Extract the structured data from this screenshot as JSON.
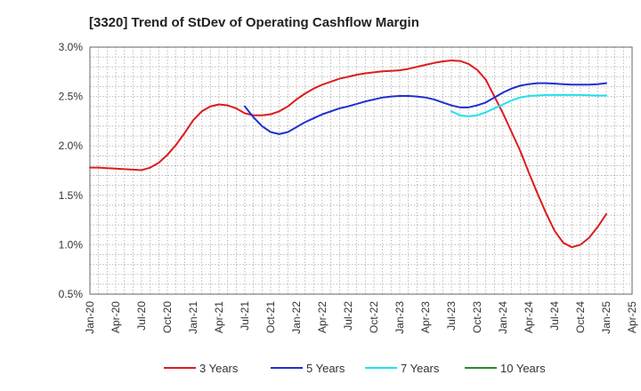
{
  "chart_data": {
    "type": "line",
    "title": "[3320]  Trend of StDev of Operating Cashflow Margin",
    "xlabel": "",
    "ylabel": "",
    "x": [
      "Jan-20",
      "Apr-20",
      "Jul-20",
      "Oct-20",
      "Jan-21",
      "Apr-21",
      "Jul-21",
      "Oct-21",
      "Jan-22",
      "Apr-22",
      "Jul-22",
      "Oct-22",
      "Jan-23",
      "Apr-23",
      "Jul-23",
      "Oct-23",
      "Jan-24",
      "Apr-24",
      "Jul-24",
      "Oct-24",
      "Jan-25",
      "Apr-25"
    ],
    "ylim": [
      0.5,
      3.0
    ],
    "yticks": [
      "0.5%",
      "1.0%",
      "1.5%",
      "2.0%",
      "2.5%",
      "3.0%"
    ],
    "grid": true,
    "legend_position": "bottom",
    "series": [
      {
        "name": "3 Years",
        "color": "#dd1c1c",
        "points": [
          [
            "Jan-20",
            1.78
          ],
          [
            "Feb-20",
            1.78
          ],
          [
            "Mar-20",
            1.775
          ],
          [
            "Apr-20",
            1.77
          ],
          [
            "May-20",
            1.765
          ],
          [
            "Jun-20",
            1.76
          ],
          [
            "Jul-20",
            1.755
          ],
          [
            "Aug-20",
            1.78
          ],
          [
            "Sep-20",
            1.83
          ],
          [
            "Oct-20",
            1.91
          ],
          [
            "Nov-20",
            2.01
          ],
          [
            "Dec-20",
            2.13
          ],
          [
            "Jan-21",
            2.26
          ],
          [
            "Feb-21",
            2.35
          ],
          [
            "Mar-21",
            2.4
          ],
          [
            "Apr-21",
            2.42
          ],
          [
            "May-21",
            2.41
          ],
          [
            "Jun-21",
            2.38
          ],
          [
            "Jul-21",
            2.33
          ],
          [
            "Aug-21",
            2.31
          ],
          [
            "Sep-21",
            2.31
          ],
          [
            "Oct-21",
            2.32
          ],
          [
            "Nov-21",
            2.35
          ],
          [
            "Dec-21",
            2.4
          ],
          [
            "Jan-22",
            2.47
          ],
          [
            "Feb-22",
            2.53
          ],
          [
            "Mar-22",
            2.58
          ],
          [
            "Apr-22",
            2.62
          ],
          [
            "May-22",
            2.65
          ],
          [
            "Jun-22",
            2.68
          ],
          [
            "Jul-22",
            2.7
          ],
          [
            "Aug-22",
            2.72
          ],
          [
            "Sep-22",
            2.735
          ],
          [
            "Oct-22",
            2.745
          ],
          [
            "Nov-22",
            2.755
          ],
          [
            "Dec-22",
            2.76
          ],
          [
            "Jan-23",
            2.765
          ],
          [
            "Feb-23",
            2.78
          ],
          [
            "Mar-23",
            2.8
          ],
          [
            "Apr-23",
            2.82
          ],
          [
            "May-23",
            2.84
          ],
          [
            "Jun-23",
            2.855
          ],
          [
            "Jul-23",
            2.865
          ],
          [
            "Aug-23",
            2.86
          ],
          [
            "Sep-23",
            2.83
          ],
          [
            "Oct-23",
            2.77
          ],
          [
            "Nov-23",
            2.67
          ],
          [
            "Dec-23",
            2.5
          ],
          [
            "Jan-24",
            2.33
          ],
          [
            "Feb-24",
            2.14
          ],
          [
            "Mar-24",
            1.95
          ],
          [
            "Apr-24",
            1.73
          ],
          [
            "May-24",
            1.52
          ],
          [
            "Jun-24",
            1.32
          ],
          [
            "Jul-24",
            1.14
          ],
          [
            "Aug-24",
            1.02
          ],
          [
            "Sep-24",
            0.975
          ],
          [
            "Oct-24",
            1.0
          ],
          [
            "Nov-24",
            1.07
          ],
          [
            "Dec-24",
            1.18
          ],
          [
            "Jan-25",
            1.31
          ]
        ]
      },
      {
        "name": "5 Years",
        "color": "#1f2fcf",
        "points": [
          [
            "Jul-21",
            2.4
          ],
          [
            "Aug-21",
            2.29
          ],
          [
            "Sep-21",
            2.2
          ],
          [
            "Oct-21",
            2.14
          ],
          [
            "Nov-21",
            2.12
          ],
          [
            "Dec-21",
            2.14
          ],
          [
            "Jan-22",
            2.19
          ],
          [
            "Feb-22",
            2.24
          ],
          [
            "Mar-22",
            2.28
          ],
          [
            "Apr-22",
            2.32
          ],
          [
            "May-22",
            2.35
          ],
          [
            "Jun-22",
            2.38
          ],
          [
            "Jul-22",
            2.4
          ],
          [
            "Aug-22",
            2.425
          ],
          [
            "Sep-22",
            2.45
          ],
          [
            "Oct-22",
            2.47
          ],
          [
            "Nov-22",
            2.49
          ],
          [
            "Dec-22",
            2.5
          ],
          [
            "Jan-23",
            2.505
          ],
          [
            "Feb-23",
            2.505
          ],
          [
            "Mar-23",
            2.5
          ],
          [
            "Apr-23",
            2.49
          ],
          [
            "May-23",
            2.47
          ],
          [
            "Jun-23",
            2.44
          ],
          [
            "Jul-23",
            2.41
          ],
          [
            "Aug-23",
            2.39
          ],
          [
            "Sep-23",
            2.39
          ],
          [
            "Oct-23",
            2.41
          ],
          [
            "Nov-23",
            2.44
          ],
          [
            "Dec-23",
            2.49
          ],
          [
            "Jan-24",
            2.54
          ],
          [
            "Feb-24",
            2.58
          ],
          [
            "Mar-24",
            2.61
          ],
          [
            "Apr-24",
            2.625
          ],
          [
            "May-24",
            2.635
          ],
          [
            "Jun-24",
            2.635
          ],
          [
            "Jul-24",
            2.63
          ],
          [
            "Aug-24",
            2.625
          ],
          [
            "Sep-24",
            2.62
          ],
          [
            "Oct-24",
            2.62
          ],
          [
            "Nov-24",
            2.62
          ],
          [
            "Dec-24",
            2.625
          ],
          [
            "Jan-25",
            2.635
          ]
        ]
      },
      {
        "name": "7 Years",
        "color": "#22e0ee",
        "points": [
          [
            "Jul-23",
            2.35
          ],
          [
            "Aug-23",
            2.31
          ],
          [
            "Sep-23",
            2.3
          ],
          [
            "Oct-23",
            2.31
          ],
          [
            "Nov-23",
            2.34
          ],
          [
            "Dec-23",
            2.38
          ],
          [
            "Jan-24",
            2.42
          ],
          [
            "Feb-24",
            2.46
          ],
          [
            "Mar-24",
            2.49
          ],
          [
            "Apr-24",
            2.505
          ],
          [
            "May-24",
            2.51
          ],
          [
            "Jun-24",
            2.515
          ],
          [
            "Jul-24",
            2.515
          ],
          [
            "Aug-24",
            2.515
          ],
          [
            "Sep-24",
            2.515
          ],
          [
            "Oct-24",
            2.515
          ],
          [
            "Nov-24",
            2.512
          ],
          [
            "Dec-24",
            2.51
          ],
          [
            "Jan-25",
            2.51
          ]
        ]
      },
      {
        "name": "10 Years",
        "color": "#2a8a2a",
        "points": []
      }
    ]
  }
}
